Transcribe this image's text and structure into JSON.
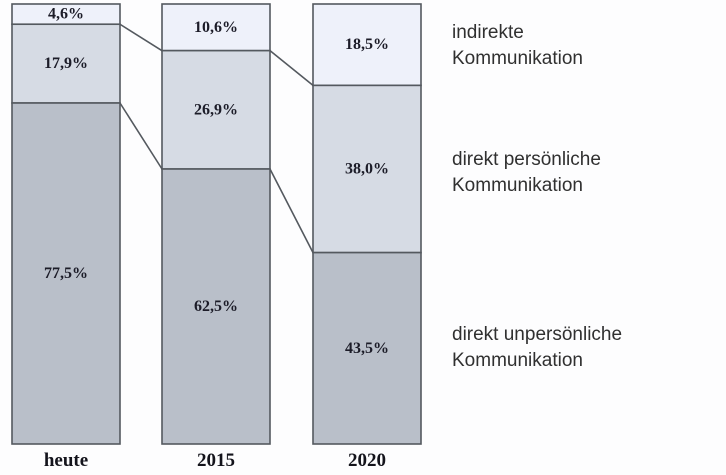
{
  "chart_data": {
    "type": "bar",
    "stacked": true,
    "unit": "%",
    "title": "",
    "xlabel": "",
    "ylabel": "",
    "ylim": [
      0,
      100
    ],
    "grid": false,
    "legend_position": "right",
    "categories": [
      "heute",
      "2015",
      "2020"
    ],
    "series": [
      {
        "name": "indirekte\nKommunikation",
        "values": [
          4.6,
          10.6,
          18.5
        ],
        "labels": [
          "4,6%",
          "10,6%",
          "18,5%"
        ],
        "color": "#eef1fa"
      },
      {
        "name": "direkt persönliche\nKommunikation",
        "values": [
          17.9,
          26.9,
          38.0
        ],
        "labels": [
          "17,9%",
          "26,9%",
          "38,0%"
        ],
        "color": "#d6dbe4"
      },
      {
        "name": "direkt unpersönliche\nKommunikation",
        "values": [
          77.5,
          62.5,
          43.5
        ],
        "labels": [
          "77,5%",
          "62,5%",
          "43,5%"
        ],
        "color": "#b9bfc9"
      }
    ],
    "bar_border_color": "#54595f",
    "connector_color": "#54595f",
    "value_label_color": "#1c1c28"
  }
}
